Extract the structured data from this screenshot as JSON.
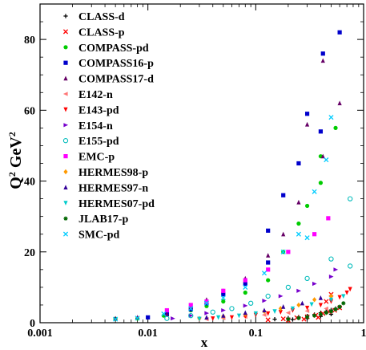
{
  "chart_data": {
    "type": "scatter",
    "x_scale": "log",
    "xlim": [
      0.001,
      1
    ],
    "ylim": [
      0,
      90
    ],
    "xlabel": "x",
    "ylabel": "Q",
    "ylabel_sup1": "2",
    "ylabel_unit": " GeV",
    "ylabel_sup2": "2",
    "x_ticks": [
      {
        "value": 0.001,
        "label": "0.001"
      },
      {
        "value": 0.01,
        "label": "0.01"
      },
      {
        "value": 0.1,
        "label": "0.1"
      },
      {
        "value": 1,
        "label": "1"
      }
    ],
    "y_ticks": [
      {
        "value": 0,
        "label": "0"
      },
      {
        "value": 20,
        "label": "20"
      },
      {
        "value": 40,
        "label": "40"
      },
      {
        "value": 60,
        "label": "60"
      },
      {
        "value": 80,
        "label": "80"
      }
    ],
    "legend_position": "top-left",
    "series": [
      {
        "name": "CLASS-d",
        "color": "#000000",
        "marker": "plus",
        "points": [
          [
            0.15,
            1.0
          ],
          [
            0.2,
            1.3
          ],
          [
            0.25,
            1.6
          ],
          [
            0.3,
            1.9
          ],
          [
            0.35,
            2.3
          ],
          [
            0.4,
            2.8
          ],
          [
            0.45,
            3.2
          ],
          [
            0.5,
            3.6
          ],
          [
            0.55,
            4.0
          ],
          [
            0.6,
            4.4
          ],
          [
            0.22,
            0.9
          ],
          [
            0.3,
            1.2
          ],
          [
            0.4,
            1.8
          ],
          [
            0.5,
            2.4
          ]
        ]
      },
      {
        "name": "CLASS-p",
        "color": "#ff0000",
        "marker": "cross",
        "points": [
          [
            0.13,
            0.8
          ],
          [
            0.18,
            1.1
          ],
          [
            0.24,
            1.4
          ],
          [
            0.3,
            1.7
          ],
          [
            0.36,
            2.1
          ],
          [
            0.42,
            2.6
          ],
          [
            0.48,
            3.1
          ],
          [
            0.54,
            3.5
          ],
          [
            0.6,
            4.2
          ],
          [
            0.2,
            0.7
          ],
          [
            0.28,
            1.0
          ],
          [
            0.38,
            1.5
          ],
          [
            0.45,
            6.0
          ],
          [
            0.5,
            8.0
          ]
        ]
      },
      {
        "name": "COMPASS-pd",
        "color": "#00cc00",
        "marker": "circle",
        "points": [
          [
            0.005,
            1.1
          ],
          [
            0.008,
            1.2
          ],
          [
            0.014,
            2.0
          ],
          [
            0.025,
            3.5
          ],
          [
            0.035,
            4.7
          ],
          [
            0.05,
            6.0
          ],
          [
            0.08,
            8.5
          ],
          [
            0.13,
            12.0
          ],
          [
            0.18,
            20.0
          ],
          [
            0.25,
            28.0
          ],
          [
            0.4,
            39.5
          ],
          [
            0.4,
            47.0
          ],
          [
            0.55,
            55.0
          ],
          [
            0.3,
            33.0
          ]
        ]
      },
      {
        "name": "COMPASS16-p",
        "color": "#0000cc",
        "marker": "square",
        "points": [
          [
            0.01,
            1.5
          ],
          [
            0.015,
            2.4
          ],
          [
            0.025,
            3.8
          ],
          [
            0.035,
            5.5
          ],
          [
            0.05,
            8.0
          ],
          [
            0.08,
            11.0
          ],
          [
            0.13,
            17.0
          ],
          [
            0.13,
            26.0
          ],
          [
            0.18,
            36.0
          ],
          [
            0.25,
            45.0
          ],
          [
            0.3,
            59.0
          ],
          [
            0.4,
            54.0
          ],
          [
            0.42,
            76.0
          ],
          [
            0.6,
            82.0
          ]
        ]
      },
      {
        "name": "COMPASS17-d",
        "color": "#660066",
        "marker": "triangle-up",
        "points": [
          [
            0.005,
            1.2
          ],
          [
            0.008,
            1.5
          ],
          [
            0.015,
            2.5
          ],
          [
            0.025,
            4.5
          ],
          [
            0.035,
            6.5
          ],
          [
            0.05,
            9.0
          ],
          [
            0.08,
            12.5
          ],
          [
            0.13,
            19.0
          ],
          [
            0.18,
            25.0
          ],
          [
            0.25,
            34.0
          ],
          [
            0.3,
            56.0
          ],
          [
            0.42,
            74.0
          ],
          [
            0.6,
            62.0
          ],
          [
            0.42,
            47.0
          ]
        ]
      },
      {
        "name": "E142-n",
        "color": "#ff7777",
        "marker": "triangle-left",
        "points": [
          [
            0.035,
            1.0
          ],
          [
            0.05,
            1.3
          ],
          [
            0.08,
            1.7
          ],
          [
            0.12,
            2.2
          ],
          [
            0.2,
            2.8
          ],
          [
            0.3,
            3.3
          ],
          [
            0.45,
            4.0
          ]
        ]
      },
      {
        "name": "E143-pd",
        "color": "#ff0000",
        "marker": "triangle-down",
        "points": [
          [
            0.03,
            1.0
          ],
          [
            0.04,
            1.2
          ],
          [
            0.06,
            1.5
          ],
          [
            0.08,
            1.8
          ],
          [
            0.1,
            2.2
          ],
          [
            0.13,
            2.6
          ],
          [
            0.17,
            3.0
          ],
          [
            0.22,
            3.5
          ],
          [
            0.3,
            4.2
          ],
          [
            0.4,
            5.0
          ],
          [
            0.5,
            6.0
          ],
          [
            0.6,
            7.2
          ],
          [
            0.7,
            8.5
          ],
          [
            0.75,
            9.5
          ]
        ]
      },
      {
        "name": "E154-n",
        "color": "#7700cc",
        "marker": "triangle-right",
        "points": [
          [
            0.017,
            1.2
          ],
          [
            0.025,
            2.0
          ],
          [
            0.035,
            2.7
          ],
          [
            0.05,
            3.5
          ],
          [
            0.08,
            4.8
          ],
          [
            0.12,
            6.2
          ],
          [
            0.17,
            7.5
          ],
          [
            0.25,
            9.0
          ],
          [
            0.35,
            11.0
          ],
          [
            0.5,
            13.0
          ],
          [
            0.55,
            15.0
          ]
        ]
      },
      {
        "name": "E155-pd",
        "color": "#00bbbb",
        "marker": "circle-open",
        "points": [
          [
            0.015,
            1.2
          ],
          [
            0.025,
            2.0
          ],
          [
            0.04,
            3.0
          ],
          [
            0.06,
            4.0
          ],
          [
            0.09,
            5.5
          ],
          [
            0.13,
            7.5
          ],
          [
            0.2,
            10.0
          ],
          [
            0.3,
            12.5
          ],
          [
            0.5,
            18.0
          ],
          [
            0.75,
            16.0
          ],
          [
            0.75,
            35.0
          ]
        ]
      },
      {
        "name": "EMC-p",
        "color": "#ff00ff",
        "marker": "square",
        "points": [
          [
            0.015,
            3.5
          ],
          [
            0.025,
            5.0
          ],
          [
            0.035,
            6.0
          ],
          [
            0.05,
            9.0
          ],
          [
            0.08,
            12.0
          ],
          [
            0.13,
            15.0
          ],
          [
            0.2,
            20.0
          ],
          [
            0.35,
            25.0
          ],
          [
            0.47,
            29.5
          ]
        ]
      },
      {
        "name": "HERMES98-p",
        "color": "#ff9900",
        "marker": "diamond",
        "points": [
          [
            0.03,
            1.2
          ],
          [
            0.05,
            1.8
          ],
          [
            0.08,
            2.4
          ],
          [
            0.12,
            3.2
          ],
          [
            0.17,
            4.0
          ],
          [
            0.25,
            5.0
          ],
          [
            0.35,
            6.5
          ],
          [
            0.5,
            7.5
          ]
        ]
      },
      {
        "name": "HERMES97-n",
        "color": "#330099",
        "marker": "triangle-up",
        "points": [
          [
            0.035,
            1.5
          ],
          [
            0.05,
            2.0
          ],
          [
            0.08,
            2.8
          ],
          [
            0.12,
            3.5
          ],
          [
            0.18,
            4.5
          ],
          [
            0.27,
            5.5
          ],
          [
            0.4,
            7.0
          ]
        ]
      },
      {
        "name": "HERMES07-pd",
        "color": "#00cccc",
        "marker": "triangle-down",
        "points": [
          [
            0.03,
            1.1
          ],
          [
            0.045,
            1.5
          ],
          [
            0.07,
            2.0
          ],
          [
            0.1,
            2.6
          ],
          [
            0.15,
            3.2
          ],
          [
            0.22,
            4.0
          ],
          [
            0.33,
            5.2
          ],
          [
            0.5,
            6.5
          ],
          [
            0.65,
            7.5
          ]
        ]
      },
      {
        "name": "JLAB17-p",
        "color": "#006600",
        "marker": "star",
        "points": [
          [
            0.2,
            1.0
          ],
          [
            0.25,
            1.3
          ],
          [
            0.3,
            1.6
          ],
          [
            0.35,
            2.0
          ],
          [
            0.4,
            2.4
          ],
          [
            0.45,
            2.8
          ],
          [
            0.5,
            3.2
          ],
          [
            0.55,
            3.8
          ],
          [
            0.6,
            4.5
          ],
          [
            0.65,
            5.5
          ]
        ]
      },
      {
        "name": "SMC-pd",
        "color": "#00ccff",
        "marker": "x",
        "points": [
          [
            0.005,
            1.0
          ],
          [
            0.008,
            1.3
          ],
          [
            0.014,
            2.5
          ],
          [
            0.025,
            4.0
          ],
          [
            0.035,
            5.5
          ],
          [
            0.05,
            7.0
          ],
          [
            0.08,
            10.0
          ],
          [
            0.12,
            14.0
          ],
          [
            0.18,
            20.0
          ],
          [
            0.25,
            25.0
          ],
          [
            0.35,
            37.0
          ],
          [
            0.5,
            58.0
          ],
          [
            0.45,
            46.0
          ],
          [
            0.3,
            24.0
          ]
        ]
      }
    ]
  }
}
